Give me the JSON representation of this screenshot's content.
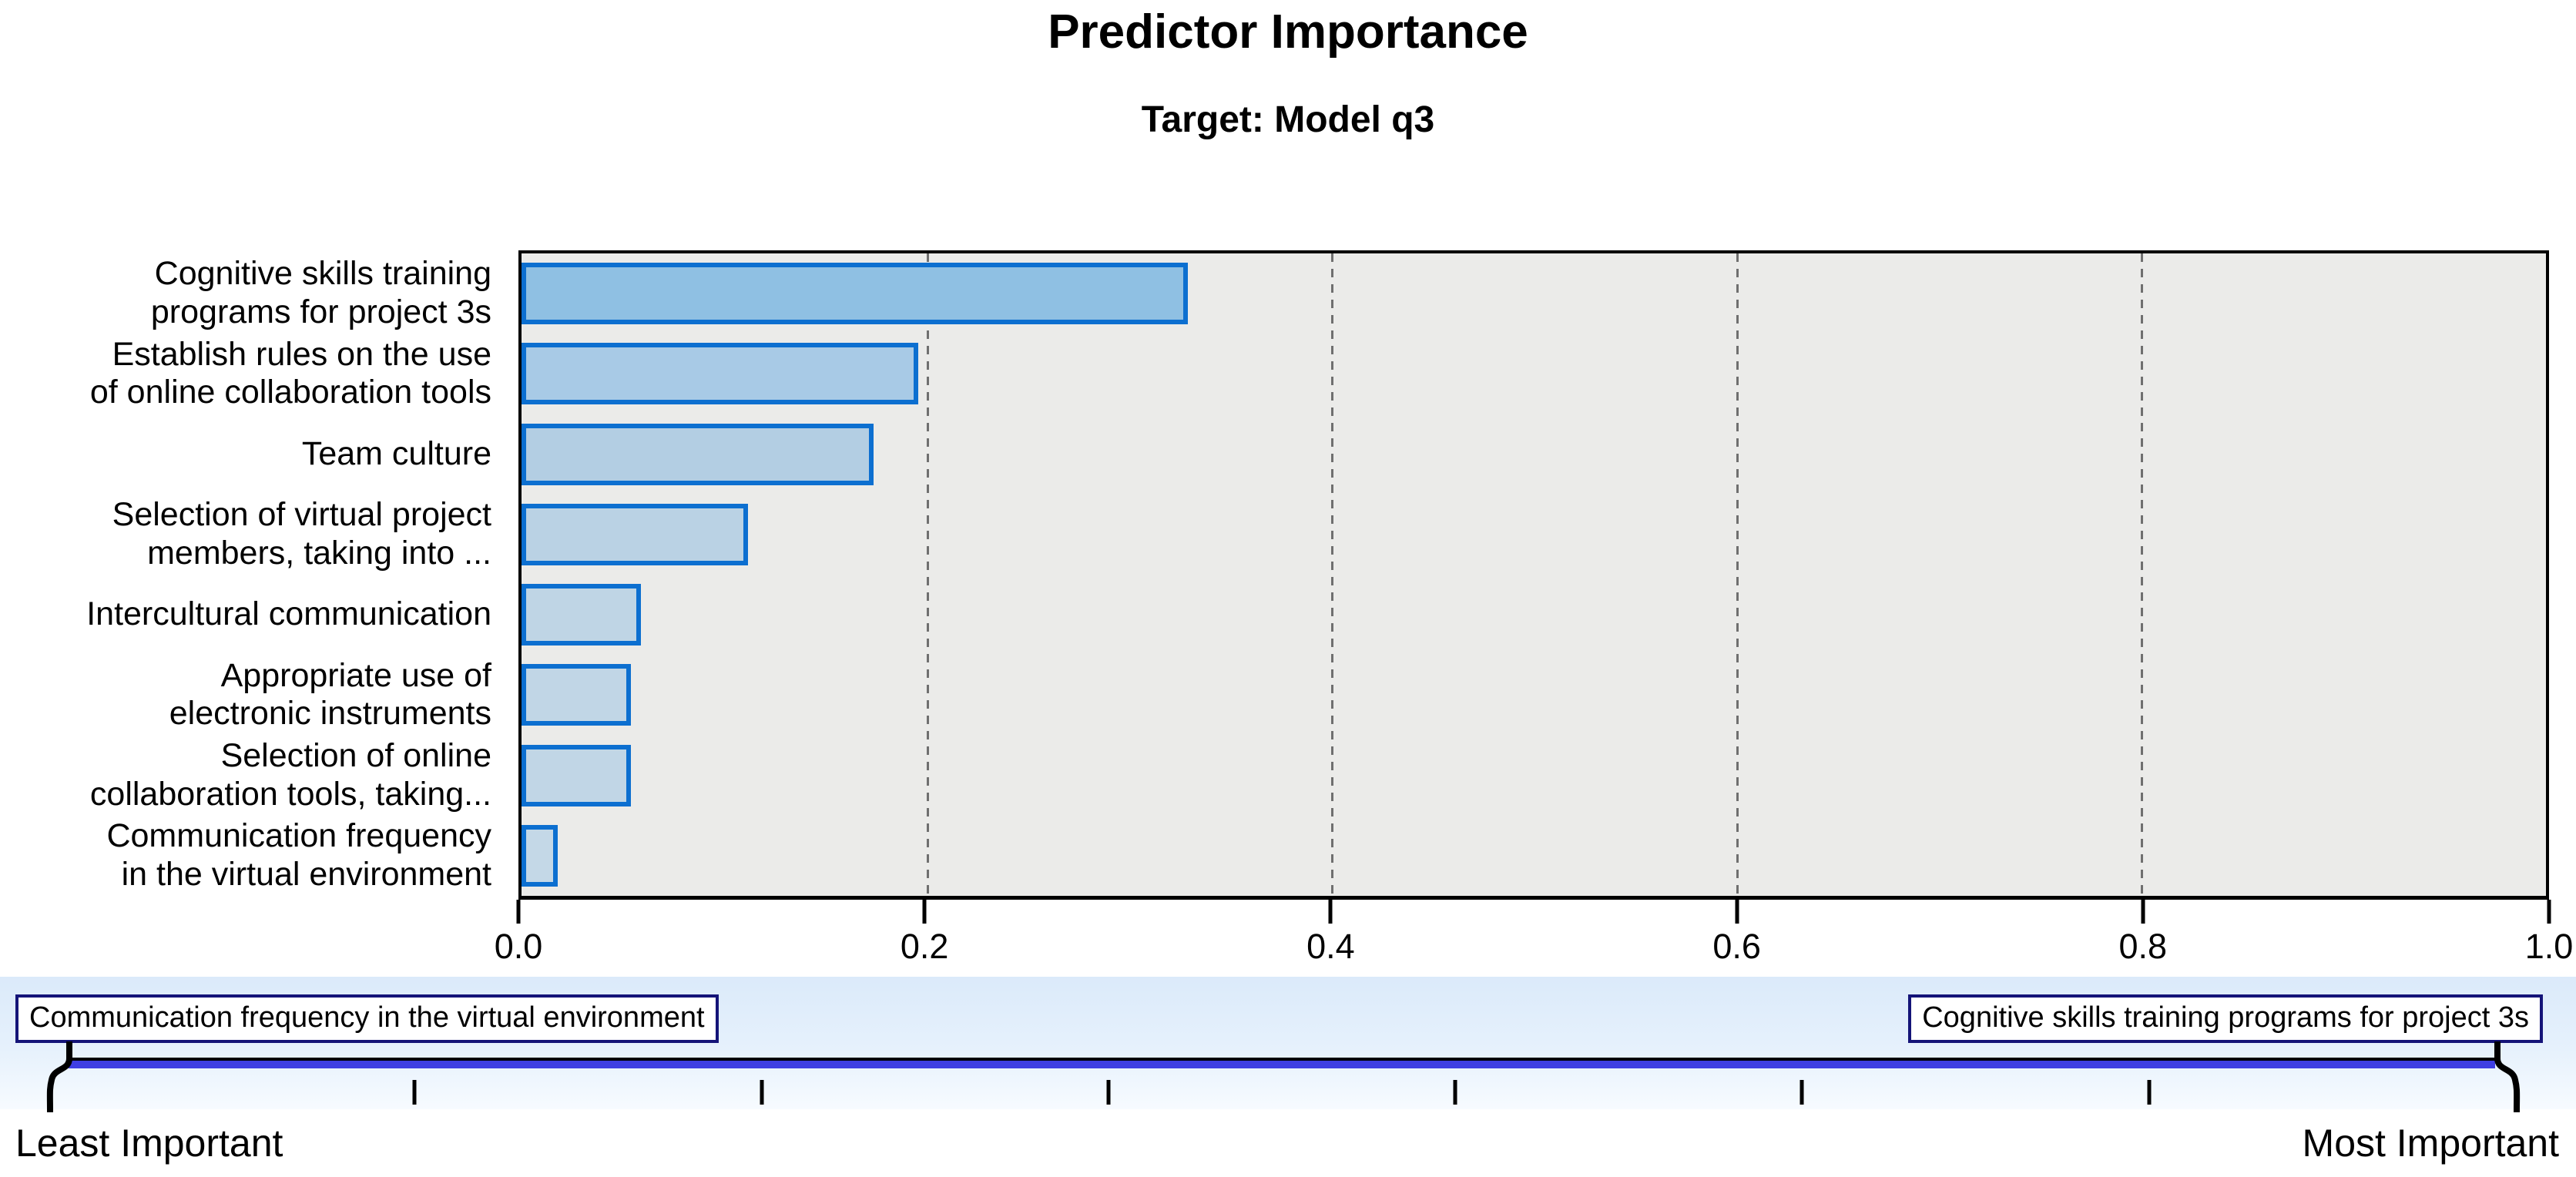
{
  "title": "Predictor Importance",
  "subtitle": "Target: Model q3",
  "chart_data": {
    "type": "bar",
    "orientation": "horizontal",
    "title": "Predictor Importance",
    "subtitle": "Target: Model q3",
    "xlabel": "",
    "ylabel": "",
    "xlim": [
      0.0,
      1.0
    ],
    "x_tick_labels": [
      "0.0",
      "0.2",
      "0.4",
      "0.6",
      "0.8",
      "1.0"
    ],
    "grid": "vertical dashed gridlines at 0.2, 0.4, 0.6, 0.8",
    "legend_position": "none",
    "categories": [
      "Cognitive skills training programs for project 3s",
      "Establish rules on the use of online collaboration tools",
      "Team culture",
      "Selection of virtual project members, taking into ...",
      "Intercultural communication",
      "Appropriate use of electronic instruments",
      "Selection of online collaboration tools, taking...",
      "Communication frequency in the virtual environment"
    ],
    "category_display_lines": [
      [
        "Cognitive skills training",
        "programs for project 3s"
      ],
      [
        "Establish rules on the use",
        "of online collaboration tools"
      ],
      [
        "Team culture"
      ],
      [
        "Selection of virtual project",
        "members, taking into ..."
      ],
      [
        "Intercultural communication"
      ],
      [
        "Appropriate use of",
        "electronic instruments"
      ],
      [
        "Selection of online",
        "collaboration tools, taking..."
      ],
      [
        "Communication frequency",
        "in the virtual environment"
      ]
    ],
    "values": [
      0.329,
      0.196,
      0.174,
      0.112,
      0.059,
      0.054,
      0.054,
      0.018
    ],
    "bar_fill_colors": [
      "#8fc0e3",
      "#a8cae6",
      "#b3cee3",
      "#bad2e4",
      "#bfd5e5",
      "#c1d6e6",
      "#c1d6e6",
      "#c4d8e7"
    ],
    "bar_border_color": "#0c6fd0",
    "plot_background": "#ebebe9",
    "gridline_color": "#6f6f6f"
  },
  "slider": {
    "left_box_label": "Communication frequency in the virtual environment",
    "right_box_label": "Cognitive skills training programs for project 3s",
    "least_label": "Least Important",
    "most_label": "Most Important",
    "track_color": "#3f3fe3",
    "box_border_color": "#141478",
    "tick_count": 6
  }
}
